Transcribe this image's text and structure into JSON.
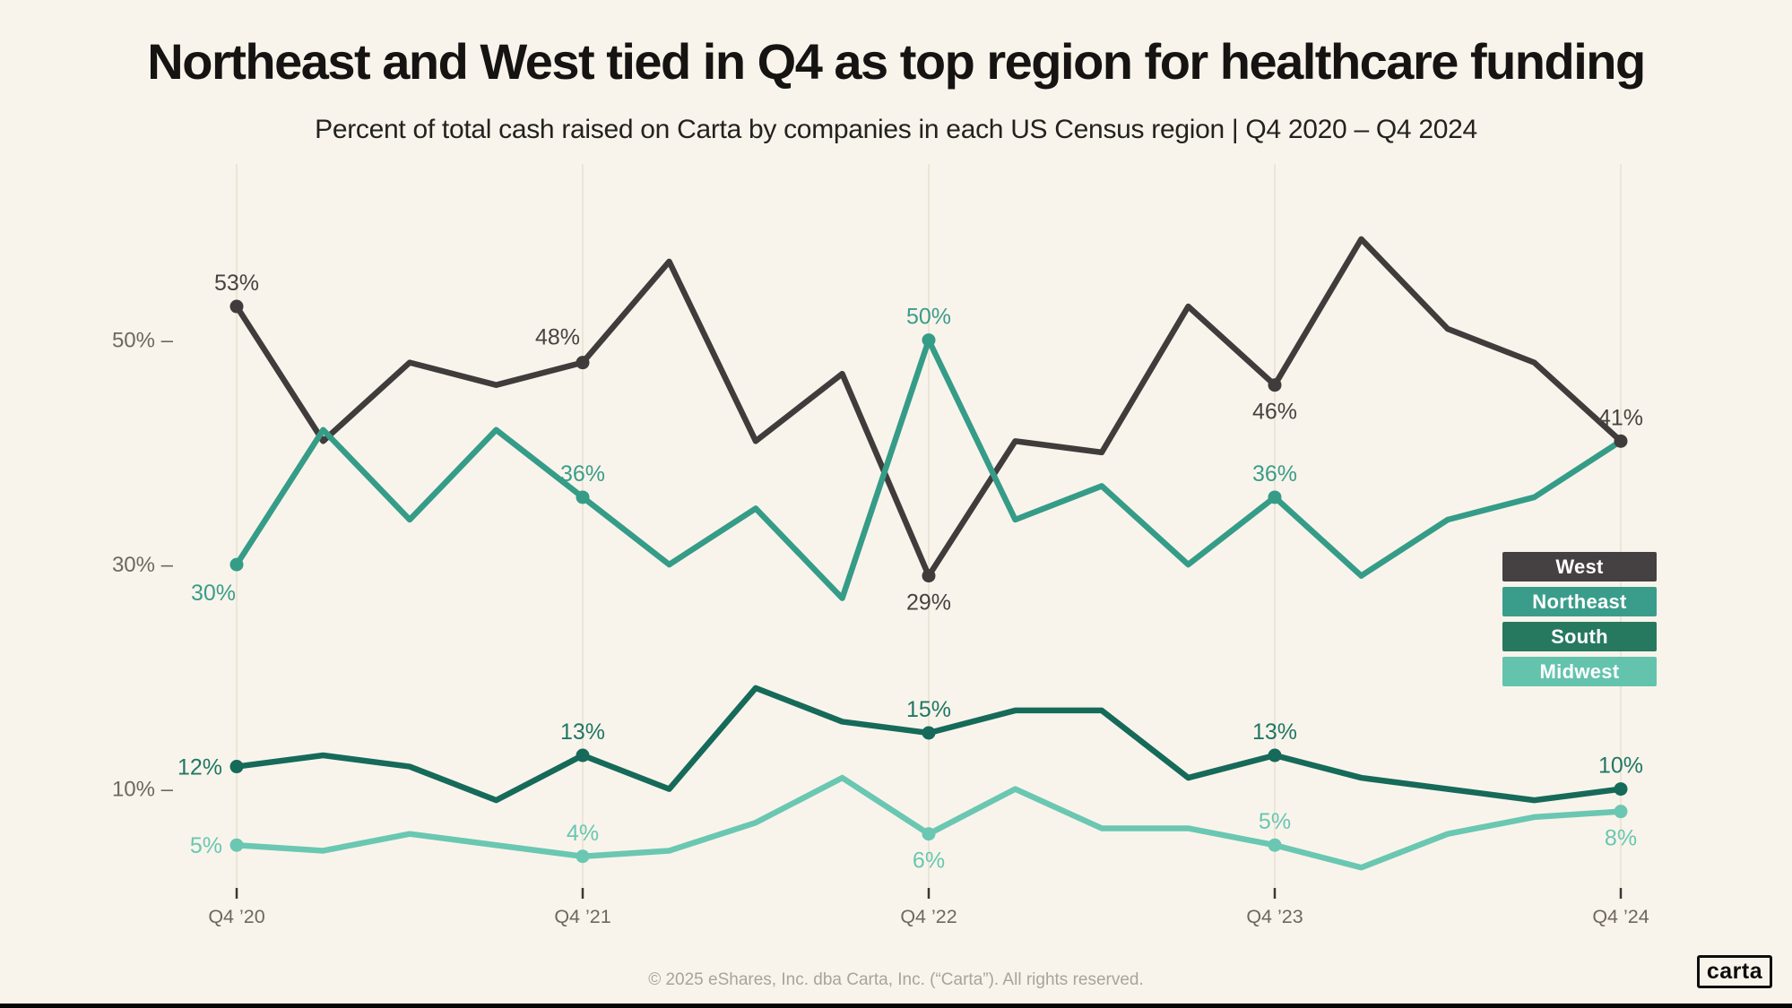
{
  "page": {
    "title": "Northeast and West tied in Q4 as top region for healthcare funding",
    "subtitle": "Percent of total cash raised on Carta by companies in each US Census region | Q4 2020 – Q4 2024",
    "footer": "© 2025 eShares, Inc. dba Carta, Inc. (“Carta”). All rights reserved.",
    "logo_text": "carta",
    "background_color": "#F9F4EB"
  },
  "chart_data": {
    "type": "line",
    "title": "Northeast and West tied in Q4 as top region for healthcare funding",
    "subtitle": "Percent of total cash raised on Carta by companies in each US Census region | Q4 2020 – Q4 2024",
    "x_unit": "quarter",
    "categories": [
      "Q4 ’20",
      "Q1 ’21",
      "Q2 ’21",
      "Q3 ’21",
      "Q4 ’21",
      "Q1 ’22",
      "Q2 ’22",
      "Q3 ’22",
      "Q4 ’22",
      "Q1 ’23",
      "Q2 ’23",
      "Q3 ’23",
      "Q4 ’23",
      "Q1 ’24",
      "Q2 ’24",
      "Q3 ’24",
      "Q4 ’24"
    ],
    "x_axis_tick_indices": [
      0,
      4,
      8,
      12,
      16
    ],
    "x_axis_tick_labels": [
      "Q4 ’20",
      "Q4 ’21",
      "Q4 ’22",
      "Q4 ’23",
      "Q4 ’24"
    ],
    "y_ticks": [
      {
        "value": 50,
        "label": "50% –"
      },
      {
        "value": 30,
        "label": "30% –"
      },
      {
        "value": 10,
        "label": "10% –"
      }
    ],
    "ylim": [
      0,
      62
    ],
    "grid": "vertical-gridlines-at-year-ticks",
    "legend_position": "right",
    "series": [
      {
        "name": "West",
        "color": "#403C3B",
        "chip_color": "#454142",
        "label_color": "#474341",
        "values": [
          53,
          41,
          48,
          46,
          48,
          57,
          41,
          47,
          29,
          41,
          40,
          53,
          46,
          59,
          51,
          48,
          41
        ],
        "labels": [
          {
            "i": 0,
            "text": "53%",
            "placement": "above"
          },
          {
            "i": 4,
            "text": "48%",
            "placement": "above-left"
          },
          {
            "i": 8,
            "text": "29%",
            "placement": "below"
          },
          {
            "i": 12,
            "text": "46%",
            "placement": "below"
          },
          {
            "i": 16,
            "text": "41%",
            "placement": "above"
          }
        ]
      },
      {
        "name": "Northeast",
        "color": "#359C88",
        "chip_color": "#3A9D8B",
        "label_color": "#3A9D8B",
        "values": [
          30,
          42,
          34,
          42,
          36,
          30,
          35,
          27,
          50,
          34,
          37,
          30,
          36,
          29,
          34,
          36,
          41
        ],
        "labels": [
          {
            "i": 0,
            "text": "30%",
            "placement": "below-left"
          },
          {
            "i": 4,
            "text": "36%",
            "placement": "above"
          },
          {
            "i": 8,
            "text": "50%",
            "placement": "above"
          },
          {
            "i": 12,
            "text": "36%",
            "placement": "above"
          }
        ]
      },
      {
        "name": "South",
        "color": "#166A59",
        "chip_color": "#26795F",
        "label_color": "#1F7765",
        "values": [
          12,
          13,
          12,
          9,
          13,
          10,
          19,
          16,
          15,
          17,
          17,
          11,
          13,
          11,
          10,
          9,
          10
        ],
        "labels": [
          {
            "i": 0,
            "text": "12%",
            "placement": "left"
          },
          {
            "i": 4,
            "text": "13%",
            "placement": "above"
          },
          {
            "i": 8,
            "text": "15%",
            "placement": "above"
          },
          {
            "i": 12,
            "text": "13%",
            "placement": "above"
          },
          {
            "i": 16,
            "text": "10%",
            "placement": "above"
          }
        ]
      },
      {
        "name": "Midwest",
        "color": "#6AC7B2",
        "chip_color": "#63C3AD",
        "label_color": "#68C7B2",
        "values": [
          5,
          4.5,
          6,
          5,
          4,
          4.5,
          7,
          11,
          6,
          10,
          6.5,
          6.5,
          5,
          3,
          6,
          7.5,
          8
        ],
        "labels": [
          {
            "i": 0,
            "text": "5%",
            "placement": "left"
          },
          {
            "i": 4,
            "text": "4%",
            "placement": "above"
          },
          {
            "i": 8,
            "text": "6%",
            "placement": "below"
          },
          {
            "i": 12,
            "text": "5%",
            "placement": "above"
          },
          {
            "i": 16,
            "text": "8%",
            "placement": "below"
          }
        ]
      }
    ]
  }
}
